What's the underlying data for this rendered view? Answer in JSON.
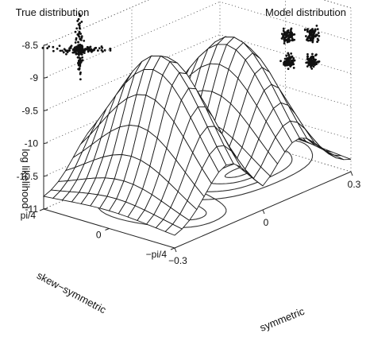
{
  "chart_data": {
    "type": "surface",
    "z_label": "log likelihood",
    "x_label": "symmetric",
    "y_label": "skew−symmetric",
    "z_ticks": [
      "-8.5",
      "-9",
      "-9.5",
      "-10",
      "-10.5",
      "-11"
    ],
    "z_tick_values": [
      -8.5,
      -9,
      -9.5,
      -10,
      -10.5,
      -11
    ],
    "zlim": [
      -11,
      -8.5
    ],
    "x_ticks": [
      "−0.3",
      "0",
      "0.3"
    ],
    "x_tick_values": [
      -0.3,
      0,
      0.3
    ],
    "xlim": [
      -0.3,
      0.3
    ],
    "y_ticks": [
      "pi/4",
      "0",
      "−pi/4"
    ],
    "y_tick_values": [
      0.785,
      0,
      -0.785
    ],
    "ylim": [
      -0.785,
      0.785
    ],
    "peaks": [
      {
        "x": -0.12,
        "y": 0.0,
        "z": -8.7
      },
      {
        "x": 0.12,
        "y": 0.0,
        "z": -8.9
      }
    ],
    "contours_on_floor": true,
    "grid": true,
    "insets": [
      {
        "title": "True distribution",
        "shape": "cross"
      },
      {
        "title": "Model distribution",
        "shape": "four-clusters"
      }
    ]
  }
}
